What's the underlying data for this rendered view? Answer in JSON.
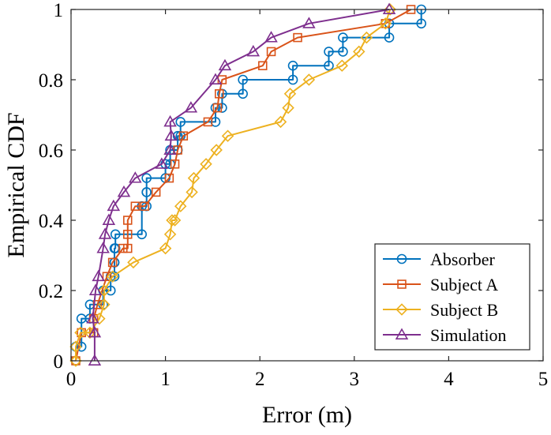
{
  "chart_data": {
    "type": "line",
    "title": "",
    "xlabel": "Error (m)",
    "ylabel": "Empirical CDF",
    "xlim": [
      0,
      5
    ],
    "ylim": [
      0,
      1
    ],
    "xticks": [
      0,
      1,
      2,
      3,
      4,
      5
    ],
    "yticks": [
      0,
      0.2,
      0.4,
      0.6,
      0.8,
      1
    ],
    "xtick_labels": [
      "0",
      "1",
      "2",
      "3",
      "4",
      "5"
    ],
    "ytick_labels": [
      "0",
      "0.2",
      "0.4",
      "0.6",
      "0.8",
      "1"
    ],
    "grid": false,
    "legend_position": "bottom-right",
    "series": [
      {
        "name": "Absorber",
        "color": "#0072BD",
        "marker": "circle",
        "x": [
          0.05,
          0.05,
          0.11,
          0.11,
          0.2,
          0.2,
          0.34,
          0.34,
          0.42,
          0.42,
          0.46,
          0.46,
          0.46,
          0.46,
          0.47,
          0.47,
          0.75,
          0.75,
          0.8,
          0.8,
          0.8,
          0.8,
          1.0,
          1.0,
          1.05,
          1.05,
          1.13,
          1.13,
          1.16,
          1.16,
          1.53,
          1.53,
          1.6,
          1.6,
          1.82,
          1.82,
          2.35,
          2.35,
          2.73,
          2.73,
          2.88,
          2.88,
          3.37,
          3.37,
          3.71,
          3.71
        ],
        "y": [
          0,
          0.04,
          0.04,
          0.12,
          0.12,
          0.16,
          0.16,
          0.2,
          0.2,
          0.24,
          0.24,
          0.28,
          0.28,
          0.32,
          0.32,
          0.36,
          0.36,
          0.44,
          0.44,
          0.48,
          0.48,
          0.52,
          0.52,
          0.56,
          0.56,
          0.6,
          0.6,
          0.64,
          0.64,
          0.68,
          0.68,
          0.72,
          0.72,
          0.76,
          0.76,
          0.8,
          0.8,
          0.84,
          0.84,
          0.88,
          0.88,
          0.92,
          0.92,
          0.96,
          0.96,
          1.0
        ]
      },
      {
        "name": "Subject A",
        "color": "#D95319",
        "marker": "square",
        "x": [
          0.05,
          0.11,
          0.24,
          0.24,
          0.28,
          0.38,
          0.44,
          0.55,
          0.6,
          0.6,
          0.6,
          0.68,
          0.78,
          0.9,
          1.04,
          1.1,
          1.13,
          1.19,
          1.45,
          1.55,
          1.57,
          1.6,
          2.03,
          2.12,
          2.4,
          3.33,
          3.6
        ],
        "y": [
          0,
          0.08,
          0.08,
          0.12,
          0.16,
          0.24,
          0.28,
          0.32,
          0.32,
          0.36,
          0.4,
          0.44,
          0.44,
          0.48,
          0.52,
          0.56,
          0.6,
          0.64,
          0.68,
          0.72,
          0.76,
          0.8,
          0.84,
          0.88,
          0.92,
          0.96,
          1.0
        ]
      },
      {
        "name": "Subject B",
        "color": "#EDB120",
        "marker": "diamond",
        "x": [
          0.05,
          0.05,
          0.1,
          0.2,
          0.3,
          0.35,
          0.35,
          0.44,
          0.66,
          1.0,
          1.05,
          1.07,
          1.1,
          1.16,
          1.28,
          1.3,
          1.43,
          1.54,
          1.66,
          2.22,
          2.3,
          2.32,
          2.52,
          2.87,
          3.05,
          3.13,
          3.33,
          3.38
        ],
        "y": [
          0,
          0.04,
          0.08,
          0.08,
          0.12,
          0.16,
          0.2,
          0.24,
          0.28,
          0.32,
          0.36,
          0.4,
          0.4,
          0.44,
          0.48,
          0.52,
          0.56,
          0.6,
          0.64,
          0.68,
          0.72,
          0.76,
          0.8,
          0.84,
          0.88,
          0.92,
          0.96,
          1.0
        ]
      },
      {
        "name": "Simulation",
        "color": "#7E2F8E",
        "marker": "triangle",
        "x": [
          0.25,
          0.25,
          0.23,
          0.26,
          0.29,
          0.34,
          0.36,
          0.4,
          0.45,
          0.56,
          0.68,
          0.96,
          1.05,
          1.06,
          1.05,
          1.27,
          1.53,
          1.63,
          1.93,
          2.12,
          2.52,
          3.37
        ],
        "y": [
          0,
          0.08,
          0.12,
          0.2,
          0.24,
          0.32,
          0.36,
          0.4,
          0.44,
          0.48,
          0.52,
          0.56,
          0.6,
          0.64,
          0.68,
          0.72,
          0.8,
          0.84,
          0.88,
          0.92,
          0.96,
          1.0
        ]
      }
    ]
  }
}
